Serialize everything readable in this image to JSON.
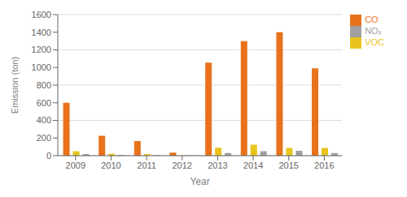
{
  "chart_data": {
    "type": "bar",
    "categories": [
      "2009",
      "2010",
      "2011",
      "2012",
      "2013",
      "2014",
      "2015",
      "2016"
    ],
    "series": [
      {
        "name": "CO",
        "color": "#E8721C",
        "values": [
          600,
          225,
          165,
          35,
          1055,
          1300,
          1400,
          990
        ]
      },
      {
        "name": "VOC",
        "color": "#E8C41C",
        "values": [
          50,
          20,
          18,
          5,
          90,
          125,
          88,
          88
        ]
      },
      {
        "name": "NOₓ",
        "color": "#A0A0A0",
        "values": [
          18,
          10,
          8,
          3,
          30,
          50,
          55,
          30
        ]
      }
    ],
    "xlabel": "Year",
    "ylabel": "Emission (ton)",
    "ylim": [
      0,
      1600
    ],
    "yticks": [
      0,
      200,
      400,
      600,
      800,
      1000,
      1200,
      1400,
      1600
    ],
    "grid": true,
    "legend": "upper right"
  }
}
